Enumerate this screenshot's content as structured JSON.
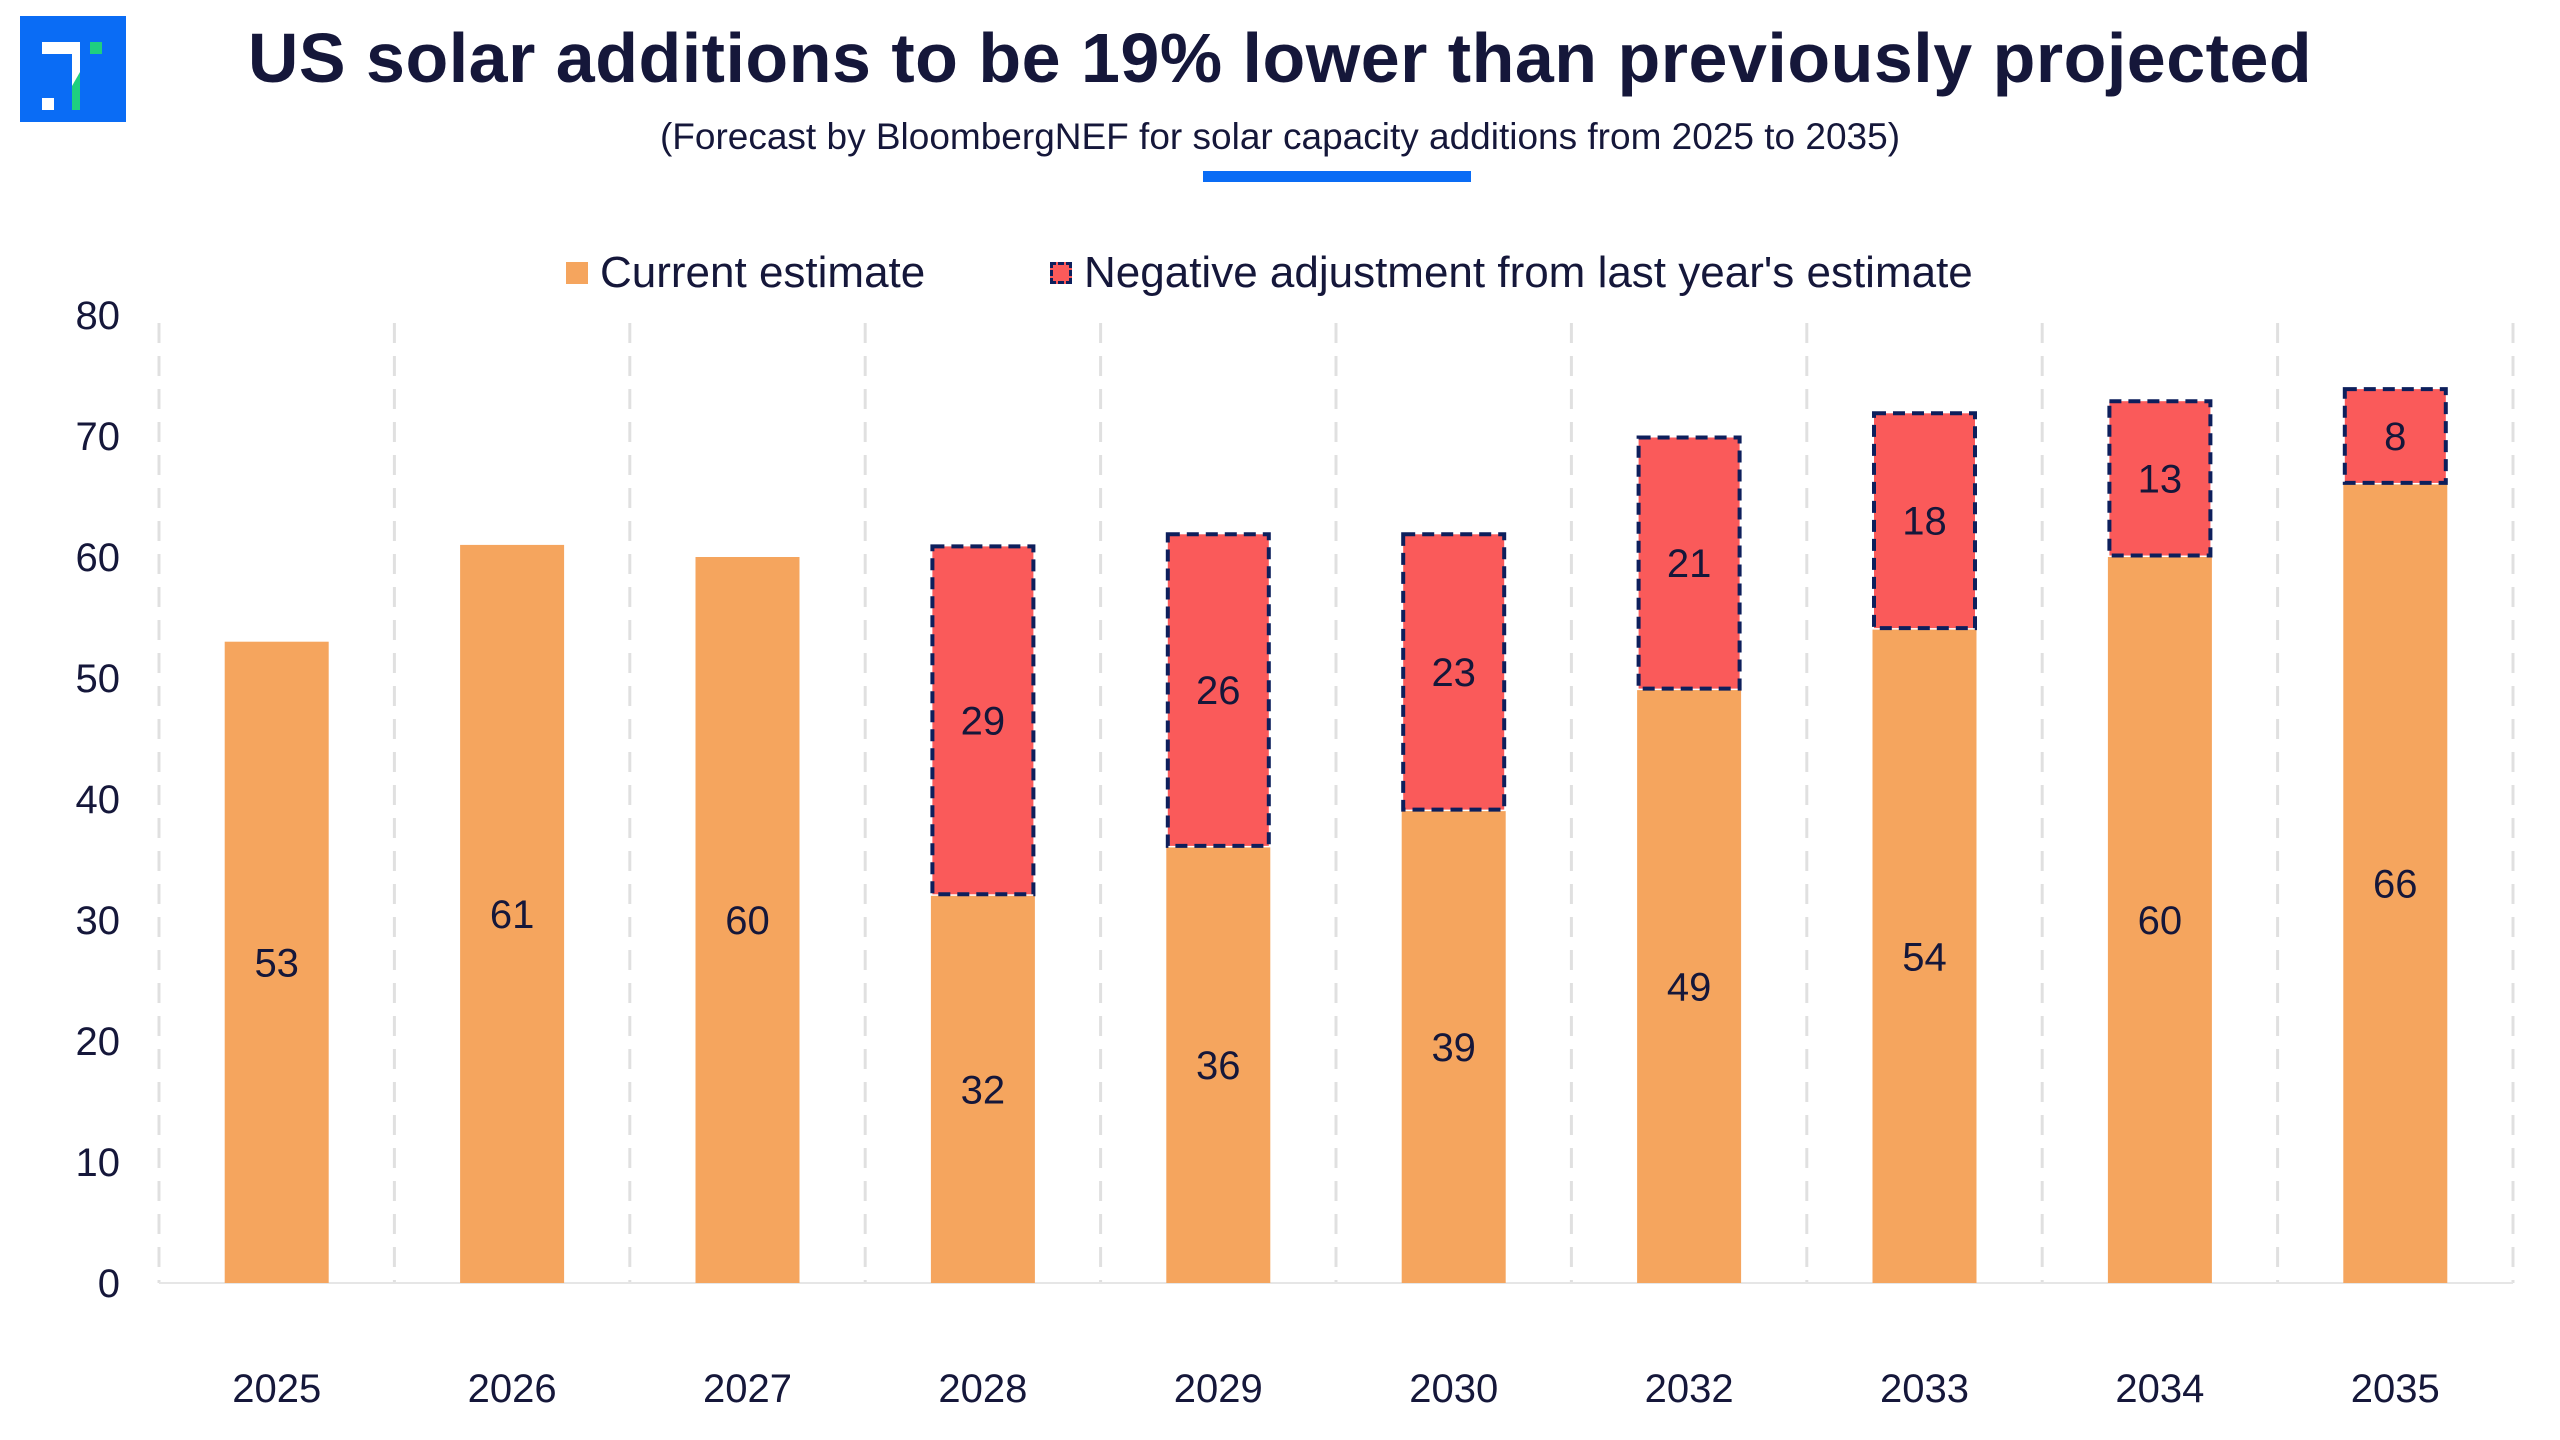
{
  "header": {
    "title": "US solar additions to be 19% lower than previously projected",
    "subtitle": "(Forecast by BloombergNEF for solar capacity additions from 2025 to 2035)",
    "logo_icon": "brand-logo-icon"
  },
  "colors": {
    "current": "#f5a55e",
    "negative": "#fa5a5a",
    "negative_border": "#0d1f5c",
    "accent": "#0a6cf5",
    "text": "#15173a",
    "grid": "#e0e0e0",
    "logo_bg": "#0a6cf5",
    "logo_green": "#1fcf7f"
  },
  "legend": [
    {
      "label": "Current estimate",
      "series": "current"
    },
    {
      "label": "Negative adjustment from last year's estimate",
      "series": "negative"
    }
  ],
  "chart_data": {
    "type": "bar",
    "stacked": true,
    "title": "US solar additions to be 19% lower than previously projected",
    "subtitle": "(Forecast by BloombergNEF for solar capacity additions from 2025 to 2035)",
    "xlabel": "",
    "ylabel": "",
    "ylim": [
      0,
      80
    ],
    "yticks": [
      0,
      10,
      20,
      30,
      40,
      50,
      60,
      70,
      80
    ],
    "grid": "vertical-dashed",
    "legend_position": "top-center",
    "categories": [
      "2025",
      "2026",
      "2027",
      "2028",
      "2029",
      "2030",
      "2032",
      "2033",
      "2034",
      "2035"
    ],
    "series": [
      {
        "name": "Current estimate",
        "values": [
          53,
          61,
          60,
          32,
          36,
          39,
          49,
          54,
          60,
          66
        ]
      },
      {
        "name": "Negative adjustment from last year's estimate",
        "values": [
          null,
          null,
          null,
          29,
          26,
          23,
          21,
          18,
          13,
          8
        ]
      }
    ]
  }
}
